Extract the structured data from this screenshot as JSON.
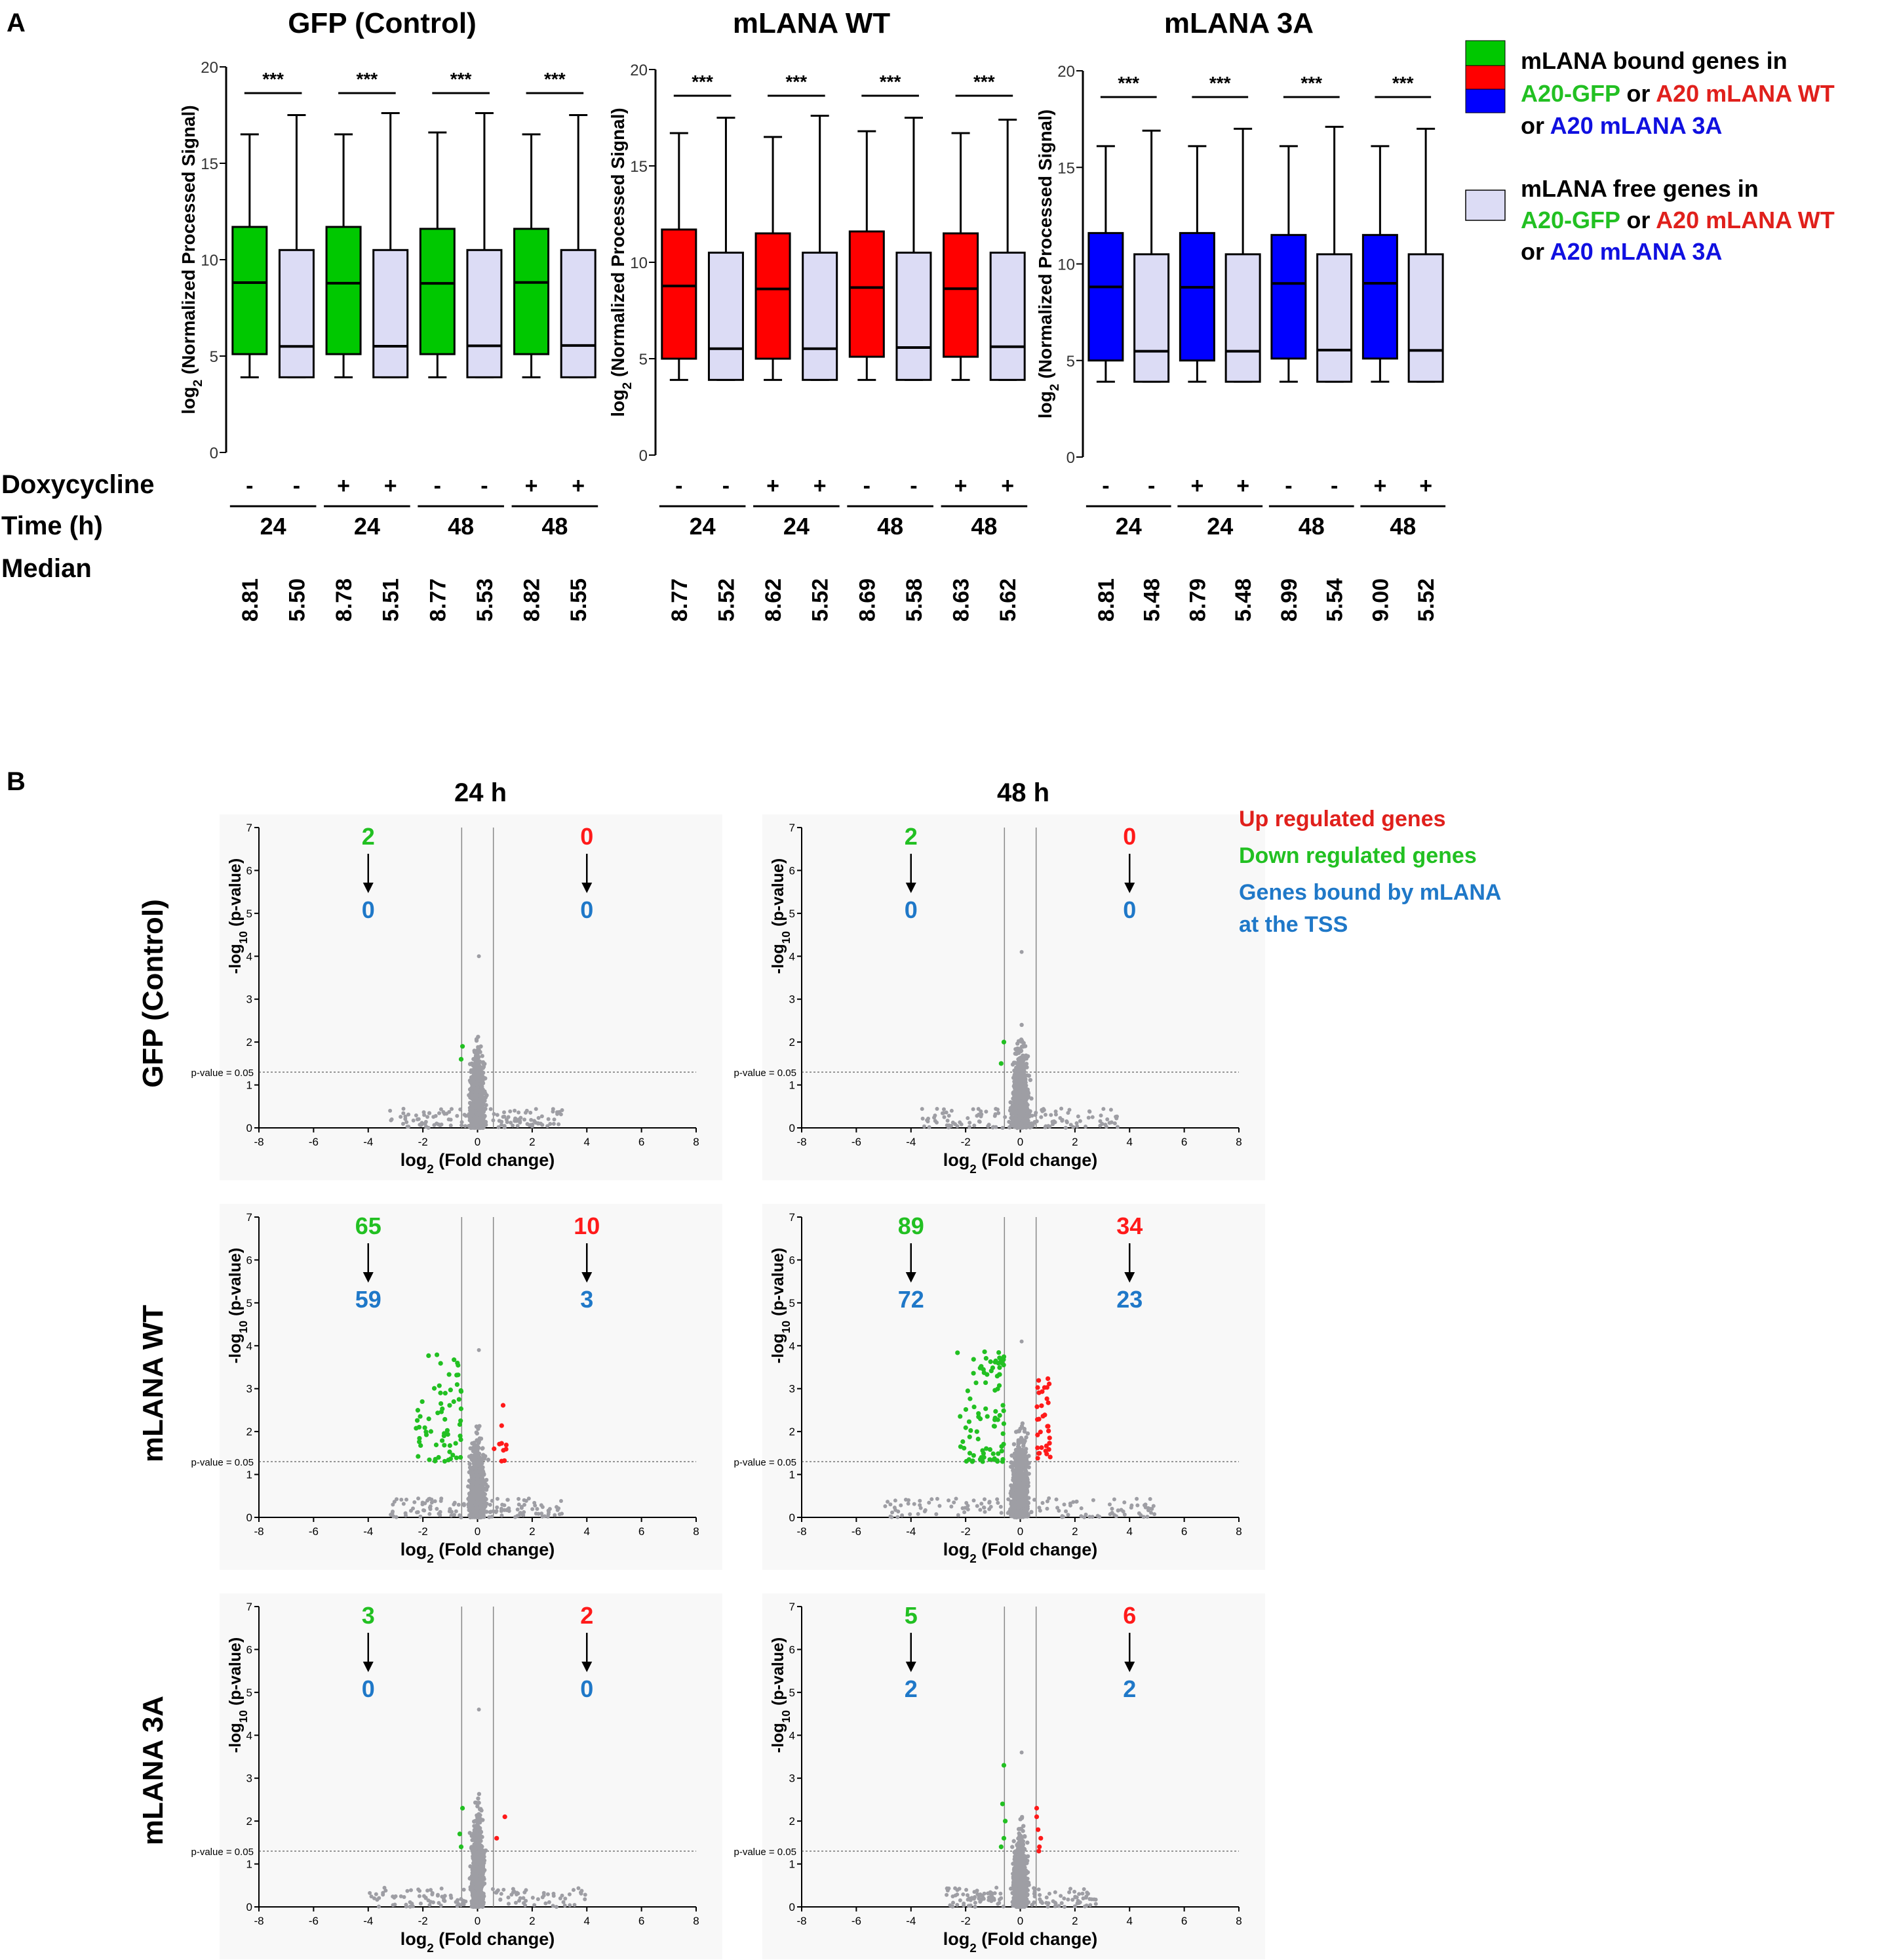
{
  "panel_labels": {
    "a": "A",
    "b": "B"
  },
  "colors": {
    "green": "#00c800",
    "red": "#ff0000",
    "blue": "#0000ff",
    "light": "#dcdcf5",
    "teal": "#1f78c8",
    "gray": "#9e9ea4",
    "legend_red": "#e0201c",
    "legend_green": "#22c022"
  },
  "panel_a": {
    "y_label_parts": [
      "log",
      "2",
      " (Normalized Processed Signal)"
    ],
    "row_labels": {
      "doxy": "Doxycycline",
      "time": "Time (h)",
      "median": "Median"
    },
    "significance": "***",
    "legend": {
      "bound": {
        "line1": "mLANA bound genes in",
        "a20gfp": "A20-GFP",
        "or1": " or ",
        "a20wt": "A20 mLANA WT",
        "or2": "or ",
        "a20_3a": "A20 mLANA 3A"
      },
      "free": {
        "line1": "mLANA free genes in",
        "a20gfp": "A20-GFP",
        "or1": " or ",
        "a20wt": "A20 mLANA WT",
        "or2": "or ",
        "a20_3a": "A20 mLANA 3A"
      }
    }
  },
  "panel_b": {
    "col_titles": [
      "24 h",
      "48 h"
    ],
    "row_titles": [
      "GFP (Control)",
      "mLANA WT",
      "mLANA 3A"
    ],
    "x_label_parts": [
      "log",
      "2",
      " (Fold change)"
    ],
    "y_label_parts": [
      "-log",
      "10",
      " (p-value)"
    ],
    "pvalue_label": "p-value = 0.05",
    "legend": {
      "up": "Up regulated genes",
      "down": "Down regulated genes",
      "bound_line1": "Genes bound by mLANA",
      "bound_line2": "at the TSS"
    }
  },
  "chart_data": [
    {
      "type": "box",
      "title": "GFP (Control)",
      "ylim": [
        0,
        20
      ],
      "yticks": [
        "0",
        "5",
        "10",
        "15",
        "20"
      ],
      "color": "green",
      "doxycycline": [
        "-",
        "-",
        "+",
        "+",
        "-",
        "-",
        "+",
        "+"
      ],
      "time": [
        "24",
        "24",
        "48",
        "48"
      ],
      "medians_text": [
        "8.81",
        "5.50",
        "8.78",
        "5.51",
        "8.77",
        "5.53",
        "8.82",
        "5.55"
      ],
      "boxes": [
        {
          "group": "bound",
          "min": 3.9,
          "q1": 5.1,
          "median": 8.81,
          "q3": 11.7,
          "max": 16.5
        },
        {
          "group": "free",
          "min": 3.9,
          "q1": 3.9,
          "median": 5.5,
          "q3": 10.5,
          "max": 17.5
        },
        {
          "group": "bound",
          "min": 3.9,
          "q1": 5.1,
          "median": 8.78,
          "q3": 11.7,
          "max": 16.5
        },
        {
          "group": "free",
          "min": 3.9,
          "q1": 3.9,
          "median": 5.51,
          "q3": 10.5,
          "max": 17.6
        },
        {
          "group": "bound",
          "min": 3.9,
          "q1": 5.1,
          "median": 8.77,
          "q3": 11.6,
          "max": 16.6
        },
        {
          "group": "free",
          "min": 3.9,
          "q1": 3.9,
          "median": 5.53,
          "q3": 10.5,
          "max": 17.6
        },
        {
          "group": "bound",
          "min": 3.9,
          "q1": 5.1,
          "median": 8.82,
          "q3": 11.6,
          "max": 16.5
        },
        {
          "group": "free",
          "min": 3.9,
          "q1": 3.9,
          "median": 5.55,
          "q3": 10.5,
          "max": 17.5
        }
      ]
    },
    {
      "type": "box",
      "title": "mLANA WT",
      "ylim": [
        0,
        20
      ],
      "yticks": [
        "0",
        "5",
        "10",
        "15",
        "20"
      ],
      "color": "red",
      "doxycycline": [
        "-",
        "-",
        "+",
        "+",
        "-",
        "-",
        "+",
        "+"
      ],
      "time": [
        "24",
        "24",
        "48",
        "48"
      ],
      "medians_text": [
        "8.77",
        "5.52",
        "8.62",
        "5.52",
        "8.69",
        "5.58",
        "8.63",
        "5.62"
      ],
      "boxes": [
        {
          "group": "bound",
          "min": 3.9,
          "q1": 5.0,
          "median": 8.77,
          "q3": 11.7,
          "max": 16.7
        },
        {
          "group": "free",
          "min": 3.9,
          "q1": 3.9,
          "median": 5.52,
          "q3": 10.5,
          "max": 17.5
        },
        {
          "group": "bound",
          "min": 3.9,
          "q1": 5.0,
          "median": 8.62,
          "q3": 11.5,
          "max": 16.5
        },
        {
          "group": "free",
          "min": 3.9,
          "q1": 3.9,
          "median": 5.52,
          "q3": 10.5,
          "max": 17.6
        },
        {
          "group": "bound",
          "min": 3.9,
          "q1": 5.1,
          "median": 8.69,
          "q3": 11.6,
          "max": 16.8
        },
        {
          "group": "free",
          "min": 3.9,
          "q1": 3.9,
          "median": 5.58,
          "q3": 10.5,
          "max": 17.5
        },
        {
          "group": "bound",
          "min": 3.9,
          "q1": 5.1,
          "median": 8.63,
          "q3": 11.5,
          "max": 16.7
        },
        {
          "group": "free",
          "min": 3.9,
          "q1": 3.9,
          "median": 5.62,
          "q3": 10.5,
          "max": 17.4
        }
      ]
    },
    {
      "type": "box",
      "title": "mLANA 3A",
      "ylim": [
        0,
        20
      ],
      "yticks": [
        "0",
        "5",
        "10",
        "15",
        "20"
      ],
      "color": "blue",
      "doxycycline": [
        "-",
        "-",
        "+",
        "+",
        "-",
        "-",
        "+",
        "+"
      ],
      "time": [
        "24",
        "24",
        "48",
        "48"
      ],
      "medians_text": [
        "8.81",
        "5.48",
        "8.79",
        "5.48",
        "8.99",
        "5.54",
        "9.00",
        "5.52"
      ],
      "boxes": [
        {
          "group": "bound",
          "min": 3.9,
          "q1": 5.0,
          "median": 8.81,
          "q3": 11.6,
          "max": 16.1
        },
        {
          "group": "free",
          "min": 3.9,
          "q1": 3.9,
          "median": 5.48,
          "q3": 10.5,
          "max": 16.9
        },
        {
          "group": "bound",
          "min": 3.9,
          "q1": 5.0,
          "median": 8.79,
          "q3": 11.6,
          "max": 16.1
        },
        {
          "group": "free",
          "min": 3.9,
          "q1": 3.9,
          "median": 5.48,
          "q3": 10.5,
          "max": 17.0
        },
        {
          "group": "bound",
          "min": 3.9,
          "q1": 5.1,
          "median": 8.99,
          "q3": 11.5,
          "max": 16.1
        },
        {
          "group": "free",
          "min": 3.9,
          "q1": 3.9,
          "median": 5.54,
          "q3": 10.5,
          "max": 17.1
        },
        {
          "group": "bound",
          "min": 3.9,
          "q1": 5.1,
          "median": 9.0,
          "q3": 11.5,
          "max": 16.1
        },
        {
          "group": "free",
          "min": 3.9,
          "q1": 3.9,
          "median": 5.52,
          "q3": 10.5,
          "max": 17.0
        }
      ]
    },
    {
      "type": "scatter",
      "row": "GFP (Control)",
      "time": "24 h",
      "xlim": [
        -8,
        8
      ],
      "ylim": [
        0,
        7
      ],
      "x_ticks": [
        "-8",
        "-6",
        "-4",
        "-2",
        "0",
        "2",
        "4",
        "6",
        "8"
      ],
      "y_ticks": [
        "0",
        "1",
        "2",
        "3",
        "4",
        "5",
        "6",
        "7"
      ],
      "fc_thresholds": [
        -0.58,
        0.58
      ],
      "p_threshold_neglog10": 1.3,
      "down_count": "2",
      "down_bound": "0",
      "up_count": "0",
      "up_bound": "0",
      "max_neglog10p": 4.0,
      "spread": 0.55,
      "tail": 2.8,
      "down_points": [
        [
          -0.6,
          1.6
        ],
        [
          -0.55,
          1.9
        ]
      ],
      "up_points": []
    },
    {
      "type": "scatter",
      "row": "GFP (Control)",
      "time": "48 h",
      "xlim": [
        -8,
        8
      ],
      "ylim": [
        0,
        7
      ],
      "x_ticks": [
        "-8",
        "-6",
        "-4",
        "-2",
        "0",
        "2",
        "4",
        "6",
        "8"
      ],
      "y_ticks": [
        "0",
        "1",
        "2",
        "3",
        "4",
        "5",
        "6",
        "7"
      ],
      "fc_thresholds": [
        -0.58,
        0.58
      ],
      "p_threshold_neglog10": 1.3,
      "down_count": "2",
      "down_bound": "0",
      "up_count": "0",
      "up_bound": "0",
      "max_neglog10p": 4.1,
      "spread": 0.6,
      "tail": 3.2,
      "down_points": [
        [
          -0.7,
          1.5
        ],
        [
          -0.6,
          2.0
        ]
      ],
      "up_points": []
    },
    {
      "type": "scatter",
      "row": "mLANA WT",
      "time": "24 h",
      "xlim": [
        -8,
        8
      ],
      "ylim": [
        0,
        7
      ],
      "x_ticks": [
        "-8",
        "-6",
        "-4",
        "-2",
        "0",
        "2",
        "4",
        "6",
        "8"
      ],
      "y_ticks": [
        "0",
        "1",
        "2",
        "3",
        "4",
        "5",
        "6",
        "7"
      ],
      "fc_thresholds": [
        -0.58,
        0.58
      ],
      "p_threshold_neglog10": 1.3,
      "down_count": "65",
      "down_bound": "59",
      "up_count": "10",
      "up_bound": "3",
      "max_neglog10p": 3.9,
      "spread": 0.6,
      "tail": 2.8,
      "down_n": 65,
      "down_xrange": [
        -2.3,
        -0.6
      ],
      "down_yrange": [
        1.3,
        3.8
      ],
      "up_n": 10,
      "up_xrange": [
        0.6,
        1.1
      ],
      "up_yrange": [
        1.3,
        3.0
      ]
    },
    {
      "type": "scatter",
      "row": "mLANA WT",
      "time": "48 h",
      "xlim": [
        -8,
        8
      ],
      "ylim": [
        0,
        7
      ],
      "x_ticks": [
        "-8",
        "-6",
        "-4",
        "-2",
        "0",
        "2",
        "4",
        "6",
        "8"
      ],
      "y_ticks": [
        "0",
        "1",
        "2",
        "3",
        "4",
        "5",
        "6",
        "7"
      ],
      "fc_thresholds": [
        -0.58,
        0.58
      ],
      "p_threshold_neglog10": 1.3,
      "down_count": "89",
      "down_bound": "72",
      "up_count": "34",
      "up_bound": "23",
      "max_neglog10p": 4.1,
      "spread": 0.65,
      "tail": 4.6,
      "down_n": 89,
      "down_xrange": [
        -2.3,
        -0.6
      ],
      "down_yrange": [
        1.3,
        3.9
      ],
      "up_n": 34,
      "up_xrange": [
        0.6,
        1.1
      ],
      "up_yrange": [
        1.3,
        3.3
      ]
    },
    {
      "type": "scatter",
      "row": "mLANA 3A",
      "time": "24 h",
      "xlim": [
        -8,
        8
      ],
      "ylim": [
        0,
        7
      ],
      "x_ticks": [
        "-8",
        "-6",
        "-4",
        "-2",
        "0",
        "2",
        "4",
        "6",
        "8"
      ],
      "y_ticks": [
        "0",
        "1",
        "2",
        "3",
        "4",
        "5",
        "6",
        "7"
      ],
      "fc_thresholds": [
        -0.58,
        0.58
      ],
      "p_threshold_neglog10": 1.3,
      "down_count": "3",
      "down_bound": "0",
      "up_count": "2",
      "up_bound": "0",
      "max_neglog10p": 4.6,
      "spread": 0.45,
      "tail": 3.6,
      "down_points": [
        [
          -0.6,
          1.4
        ],
        [
          -0.55,
          2.3
        ],
        [
          -0.65,
          1.7
        ]
      ],
      "up_points": [
        [
          0.7,
          1.6
        ],
        [
          1.0,
          2.1
        ]
      ]
    },
    {
      "type": "scatter",
      "row": "mLANA 3A",
      "time": "48 h",
      "xlim": [
        -8,
        8
      ],
      "ylim": [
        0,
        7
      ],
      "x_ticks": [
        "-8",
        "-6",
        "-4",
        "-2",
        "0",
        "2",
        "4",
        "6",
        "8"
      ],
      "y_ticks": [
        "0",
        "1",
        "2",
        "3",
        "4",
        "5",
        "6",
        "7"
      ],
      "fc_thresholds": [
        -0.58,
        0.58
      ],
      "p_threshold_neglog10": 1.3,
      "down_count": "5",
      "down_bound": "2",
      "up_count": "6",
      "up_bound": "2",
      "max_neglog10p": 3.6,
      "spread": 0.5,
      "tail": 2.4,
      "down_points": [
        [
          -0.6,
          3.3
        ],
        [
          -0.65,
          2.4
        ],
        [
          -0.6,
          1.6
        ],
        [
          -0.7,
          1.4
        ],
        [
          -0.55,
          2.0
        ]
      ],
      "up_points": [
        [
          0.6,
          2.3
        ],
        [
          0.65,
          1.8
        ],
        [
          0.7,
          1.4
        ],
        [
          0.6,
          2.1
        ],
        [
          0.75,
          1.6
        ],
        [
          0.68,
          1.3
        ]
      ]
    }
  ]
}
